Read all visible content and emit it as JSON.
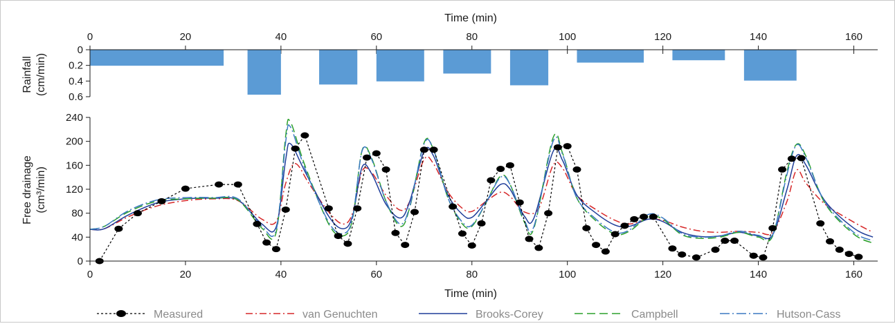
{
  "chart_data": {
    "type": "line",
    "top_panel": {
      "type": "bar",
      "xlabel": "Time (min)",
      "ylabel": [
        "Rainfall",
        "(cm/min)"
      ],
      "ylim": [
        0,
        0.6
      ],
      "inverted_y": true,
      "yticks": [
        "0",
        "0.2",
        "0.4",
        "0.6"
      ],
      "bar_color": "#5b9bd5",
      "bars": [
        {
          "start": 0,
          "end": 28,
          "value": 0.2
        },
        {
          "start": 33,
          "end": 40,
          "value": 0.57
        },
        {
          "start": 48,
          "end": 56,
          "value": 0.44
        },
        {
          "start": 60,
          "end": 70,
          "value": 0.4
        },
        {
          "start": 74,
          "end": 84,
          "value": 0.3
        },
        {
          "start": 88,
          "end": 96,
          "value": 0.45
        },
        {
          "start": 102,
          "end": 116,
          "value": 0.16
        },
        {
          "start": 122,
          "end": 133,
          "value": 0.13
        },
        {
          "start": 137,
          "end": 148,
          "value": 0.39
        }
      ]
    },
    "bottom_panel": {
      "xlabel": "Time (min)",
      "ylabel": [
        "Free drainage",
        "(cm³/min)"
      ],
      "xlim": [
        0,
        165
      ],
      "ylim": [
        0,
        240
      ],
      "xticks": [
        "0",
        "20",
        "40",
        "60",
        "80",
        "100",
        "120",
        "140",
        "160"
      ],
      "yticks": [
        "0",
        "40",
        "80",
        "120",
        "160",
        "200",
        "240"
      ],
      "measured": {
        "name": "Measured",
        "color": "#000000",
        "points": [
          [
            2,
            0
          ],
          [
            6,
            54
          ],
          [
            10,
            80
          ],
          [
            15,
            100
          ],
          [
            20,
            121
          ],
          [
            27,
            128
          ],
          [
            31,
            128
          ],
          [
            35,
            62
          ],
          [
            37,
            31
          ],
          [
            39,
            20
          ],
          [
            41,
            86
          ],
          [
            43,
            188
          ],
          [
            45,
            210
          ],
          [
            50,
            88
          ],
          [
            52,
            42
          ],
          [
            54,
            29
          ],
          [
            56,
            88
          ],
          [
            58,
            173
          ],
          [
            60,
            180
          ],
          [
            62,
            153
          ],
          [
            64,
            47
          ],
          [
            66,
            27
          ],
          [
            68,
            82
          ],
          [
            70,
            186
          ],
          [
            72,
            186
          ],
          [
            76,
            91
          ],
          [
            78,
            46
          ],
          [
            80,
            26
          ],
          [
            82,
            63
          ],
          [
            84,
            135
          ],
          [
            86,
            154
          ],
          [
            88,
            160
          ],
          [
            90,
            98
          ],
          [
            92,
            37
          ],
          [
            94,
            22
          ],
          [
            96,
            80
          ],
          [
            98,
            190
          ],
          [
            100,
            192
          ],
          [
            102,
            153
          ],
          [
            104,
            55
          ],
          [
            106,
            27
          ],
          [
            108,
            16
          ],
          [
            110,
            45
          ],
          [
            112,
            59
          ],
          [
            114,
            70
          ],
          [
            116,
            74
          ],
          [
            118,
            74
          ],
          [
            122,
            21
          ],
          [
            124,
            11
          ],
          [
            127,
            6
          ],
          [
            131,
            19
          ],
          [
            133,
            34
          ],
          [
            135,
            34
          ],
          [
            139,
            9
          ],
          [
            141,
            6
          ],
          [
            143,
            55
          ],
          [
            145,
            153
          ],
          [
            147,
            171
          ],
          [
            149,
            172
          ],
          [
            153,
            63
          ],
          [
            155,
            33
          ],
          [
            157,
            19
          ],
          [
            159,
            12
          ],
          [
            161,
            7
          ]
        ]
      },
      "models": [
        {
          "name": "van Genuchten",
          "color": "#d62728",
          "dash": "10,4,2,4",
          "points": [
            [
              0,
              53
            ],
            [
              3,
              54
            ],
            [
              8,
              74
            ],
            [
              14,
              92
            ],
            [
              20,
              101
            ],
            [
              26,
              104
            ],
            [
              31,
              101
            ],
            [
              36,
              70
            ],
            [
              39,
              66
            ],
            [
              41,
              130
            ],
            [
              43,
              163
            ],
            [
              46,
              128
            ],
            [
              50,
              82
            ],
            [
              53,
              62
            ],
            [
              55,
              80
            ],
            [
              57,
              150
            ],
            [
              59,
              148
            ],
            [
              62,
              110
            ],
            [
              65,
              85
            ],
            [
              67,
              100
            ],
            [
              70,
              170
            ],
            [
              72,
              162
            ],
            [
              75,
              115
            ],
            [
              78,
              88
            ],
            [
              80,
              83
            ],
            [
              83,
              100
            ],
            [
              86,
              115
            ],
            [
              88,
              108
            ],
            [
              91,
              82
            ],
            [
              94,
              88
            ],
            [
              97,
              160
            ],
            [
              99,
              155
            ],
            [
              102,
              110
            ],
            [
              106,
              86
            ],
            [
              110,
              68
            ],
            [
              113,
              62
            ],
            [
              117,
              70
            ],
            [
              120,
              68
            ],
            [
              124,
              57
            ],
            [
              128,
              50
            ],
            [
              132,
              48
            ],
            [
              136,
              50
            ],
            [
              140,
              48
            ],
            [
              143,
              48
            ],
            [
              146,
              100
            ],
            [
              148,
              152
            ],
            [
              150,
              130
            ],
            [
              154,
              95
            ],
            [
              160,
              65
            ],
            [
              164,
              48
            ]
          ]
        },
        {
          "name": "Brooks-Corey",
          "color": "#1f3d99",
          "dash": "",
          "points": [
            [
              0,
              53
            ],
            [
              3,
              54
            ],
            [
              8,
              77
            ],
            [
              14,
              97
            ],
            [
              20,
              104
            ],
            [
              26,
              105
            ],
            [
              31,
              102
            ],
            [
              36,
              62
            ],
            [
              39,
              57
            ],
            [
              41,
              170
            ],
            [
              42,
              196
            ],
            [
              45,
              150
            ],
            [
              50,
              75
            ],
            [
              53,
              54
            ],
            [
              55,
              75
            ],
            [
              57,
              157
            ],
            [
              59,
              146
            ],
            [
              62,
              95
            ],
            [
              65,
              72
            ],
            [
              67,
              100
            ],
            [
              70,
              184
            ],
            [
              72,
              175
            ],
            [
              75,
              110
            ],
            [
              78,
              78
            ],
            [
              80,
              73
            ],
            [
              83,
              100
            ],
            [
              86,
              128
            ],
            [
              88,
              120
            ],
            [
              91,
              75
            ],
            [
              93,
              72
            ],
            [
              97,
              183
            ],
            [
              99,
              168
            ],
            [
              102,
              110
            ],
            [
              106,
              80
            ],
            [
              110,
              60
            ],
            [
              113,
              58
            ],
            [
              117,
              70
            ],
            [
              120,
              66
            ],
            [
              124,
              48
            ],
            [
              128,
              41
            ],
            [
              132,
              42
            ],
            [
              136,
              48
            ],
            [
              140,
              42
            ],
            [
              143,
              44
            ],
            [
              146,
              120
            ],
            [
              148,
              176
            ],
            [
              150,
              160
            ],
            [
              154,
              100
            ],
            [
              160,
              55
            ],
            [
              164,
              40
            ]
          ]
        },
        {
          "name": "Campbell",
          "color": "#2ca02c",
          "dash": "12,6",
          "points": [
            [
              0,
              53
            ],
            [
              3,
              58
            ],
            [
              8,
              82
            ],
            [
              14,
              100
            ],
            [
              20,
              104
            ],
            [
              26,
              105
            ],
            [
              31,
              102
            ],
            [
              36,
              55
            ],
            [
              39,
              48
            ],
            [
              41,
              210
            ],
            [
              42,
              232
            ],
            [
              45,
              160
            ],
            [
              50,
              62
            ],
            [
              53,
              42
            ],
            [
              55,
              70
            ],
            [
              57,
              185
            ],
            [
              59,
              172
            ],
            [
              62,
              100
            ],
            [
              65,
              58
            ],
            [
              67,
              90
            ],
            [
              70,
              198
            ],
            [
              72,
              185
            ],
            [
              75,
              105
            ],
            [
              78,
              62
            ],
            [
              80,
              58
            ],
            [
              83,
              98
            ],
            [
              86,
              142
            ],
            [
              88,
              128
            ],
            [
              91,
              65
            ],
            [
              93,
              55
            ],
            [
              97,
              206
            ],
            [
              99,
              180
            ],
            [
              102,
              105
            ],
            [
              106,
              67
            ],
            [
              110,
              45
            ],
            [
              113,
              50
            ],
            [
              117,
              74
            ],
            [
              120,
              70
            ],
            [
              124,
              44
            ],
            [
              128,
              38
            ],
            [
              132,
              40
            ],
            [
              136,
              48
            ],
            [
              140,
              40
            ],
            [
              143,
              42
            ],
            [
              146,
              150
            ],
            [
              148,
              195
            ],
            [
              150,
              175
            ],
            [
              154,
              96
            ],
            [
              160,
              45
            ],
            [
              164,
              30
            ]
          ]
        },
        {
          "name": "Hutson-Cass",
          "color": "#3a78c2",
          "dash": "14,4,2,4",
          "points": [
            [
              0,
              53
            ],
            [
              3,
              58
            ],
            [
              8,
              84
            ],
            [
              14,
              102
            ],
            [
              20,
              106
            ],
            [
              26,
              106
            ],
            [
              31,
              104
            ],
            [
              36,
              58
            ],
            [
              39,
              52
            ],
            [
              41,
              200
            ],
            [
              42,
              224
            ],
            [
              45,
              155
            ],
            [
              50,
              65
            ],
            [
              53,
              46
            ],
            [
              55,
              72
            ],
            [
              57,
              184
            ],
            [
              59,
              170
            ],
            [
              62,
              100
            ],
            [
              65,
              62
            ],
            [
              67,
              92
            ],
            [
              70,
              196
            ],
            [
              72,
              185
            ],
            [
              75,
              105
            ],
            [
              78,
              65
            ],
            [
              80,
              60
            ],
            [
              83,
              98
            ],
            [
              86,
              140
            ],
            [
              88,
              128
            ],
            [
              91,
              68
            ],
            [
              93,
              58
            ],
            [
              97,
              200
            ],
            [
              99,
              178
            ],
            [
              102,
              105
            ],
            [
              106,
              70
            ],
            [
              110,
              48
            ],
            [
              113,
              52
            ],
            [
              117,
              78
            ],
            [
              120,
              72
            ],
            [
              124,
              46
            ],
            [
              128,
              40
            ],
            [
              132,
              42
            ],
            [
              136,
              50
            ],
            [
              140,
              43
            ],
            [
              143,
              44
            ],
            [
              146,
              145
            ],
            [
              148,
              194
            ],
            [
              150,
              172
            ],
            [
              154,
              98
            ],
            [
              160,
              48
            ],
            [
              164,
              34
            ]
          ]
        }
      ]
    },
    "legend": {
      "placement": "bottom"
    }
  }
}
